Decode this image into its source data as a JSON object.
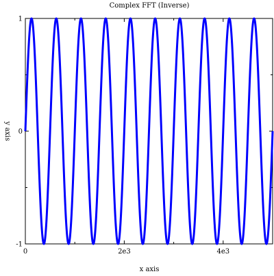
{
  "chart_data": {
    "type": "line",
    "title": "Complex FFT (Inverse)",
    "xlabel": "x axis",
    "ylabel": "y axis",
    "xlim": [
      0,
      5000
    ],
    "ylim": [
      -1,
      1
    ],
    "x_ticks": [
      {
        "value": 0,
        "label": "0"
      },
      {
        "value": 2000,
        "label": "2e3"
      },
      {
        "value": 4000,
        "label": "4e3"
      }
    ],
    "y_ticks": [
      {
        "value": -1,
        "label": "-1"
      },
      {
        "value": 0,
        "label": "0"
      },
      {
        "value": 1,
        "label": "1"
      }
    ],
    "grid": false,
    "series": [
      {
        "color": "#0000ff",
        "function": "sin",
        "amplitude": 1,
        "period": 500,
        "x_start": 0,
        "x_end": 5000
      }
    ]
  }
}
